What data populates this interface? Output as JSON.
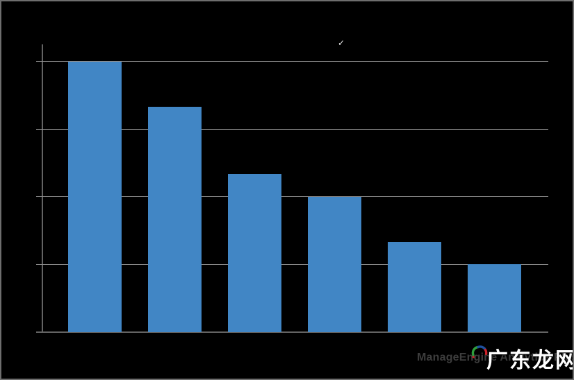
{
  "chart_data": {
    "type": "bar",
    "title": "",
    "xlabel": "",
    "ylabel": "",
    "categories": [
      "",
      "",
      "",
      "",
      "",
      ""
    ],
    "values": [
      12,
      10,
      7,
      6,
      4,
      3
    ],
    "ylim": [
      0,
      12
    ],
    "y_ticks": [
      3,
      6,
      9,
      12
    ],
    "grid": true,
    "legend_position": "none",
    "tick_labels_visible": false
  },
  "colors": {
    "bar": "#4186C5",
    "gridline": "#8f8f8f",
    "axis": "#636363",
    "background": "#000000",
    "frame_border": "#6e6e6e",
    "brand_text": "#3d3d3d",
    "watermark_text": "#ffffff",
    "logo_green": "#2f9e3c",
    "logo_blue": "#1e4f9e",
    "logo_red": "#cc2229"
  },
  "overlay": {
    "check_glyph": "✓"
  },
  "watermark": {
    "brand": "ManageEngine Analytics Plus",
    "cn_text": "广东龙网"
  }
}
